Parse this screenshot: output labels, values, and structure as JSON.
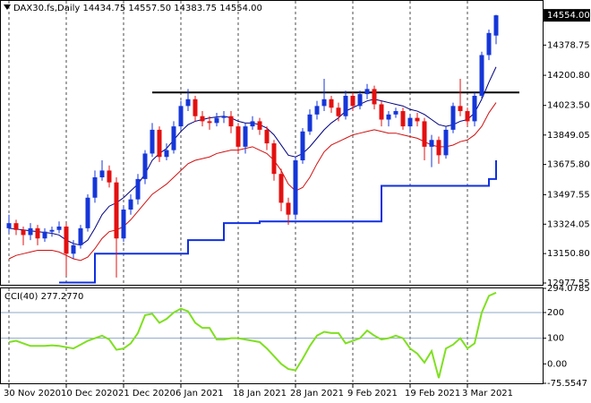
{
  "chart_data": [
    {
      "type": "candlestick",
      "title": "DAX30.fs,Daily  14434.75 14557.50 14383.75 14554.00",
      "categories": [
        "30 Nov 2020",
        null,
        null,
        null,
        null,
        null,
        null,
        null,
        "10 Dec 2020",
        null,
        null,
        null,
        null,
        null,
        null,
        null,
        "21 Dec 2020",
        null,
        null,
        null,
        null,
        null,
        null,
        null,
        "6 Jan 2021",
        null,
        null,
        null,
        null,
        null,
        null,
        null,
        "18 Jan 2021",
        null,
        null,
        null,
        null,
        null,
        null,
        null,
        "28 Jan 2021",
        null,
        null,
        null,
        null,
        null,
        null,
        null,
        "9 Feb 2021",
        null,
        null,
        null,
        null,
        null,
        null,
        null,
        "19 Feb 2021",
        null,
        null,
        null,
        null,
        null,
        null,
        null,
        "3 Mar 2021",
        null,
        null,
        null,
        null
      ],
      "open": [
        13300,
        13330,
        13290,
        13260,
        13300,
        13240,
        13280,
        13290,
        13310,
        13150,
        13200,
        13300,
        13480,
        13600,
        13640,
        13570,
        13240,
        13410,
        13470,
        13590,
        13740,
        13880,
        13720,
        13760,
        13900,
        14020,
        14060,
        13960,
        13930,
        13920,
        13950,
        13960,
        13900,
        13780,
        13900,
        13930,
        13880,
        13800,
        13620,
        13450,
        13380,
        13700,
        13870,
        13970,
        14020,
        14060,
        14010,
        13960,
        14080,
        14020,
        14090,
        14120,
        14030,
        13940,
        13970,
        13990,
        13900,
        13950,
        13930,
        13780,
        13820,
        13730,
        13880,
        14020,
        13990,
        13930,
        14080,
        14320,
        14434.75
      ],
      "high": [
        13380,
        13350,
        13310,
        13330,
        13320,
        13300,
        13310,
        13340,
        13330,
        13230,
        13320,
        13500,
        13640,
        13700,
        13670,
        13600,
        13430,
        13500,
        13620,
        13760,
        13920,
        13900,
        13800,
        13930,
        14050,
        14120,
        14080,
        13990,
        13960,
        13980,
        13990,
        13990,
        13920,
        13920,
        13960,
        13950,
        13900,
        13820,
        13650,
        13480,
        13720,
        13890,
        14000,
        14050,
        14180,
        14080,
        14040,
        14110,
        14100,
        14110,
        14150,
        14140,
        14050,
        13990,
        14010,
        14010,
        13970,
        13980,
        13950,
        13850,
        13840,
        13900,
        14040,
        14180,
        14010,
        14100,
        14340,
        14470,
        14557.5
      ],
      "low": [
        13270,
        13260,
        13200,
        13230,
        13200,
        13220,
        13250,
        13270,
        13020,
        13120,
        13180,
        13280,
        13450,
        13580,
        13540,
        13010,
        13220,
        13380,
        13440,
        13560,
        13720,
        13690,
        13700,
        13740,
        13880,
        13990,
        13930,
        13900,
        13880,
        13900,
        13920,
        13860,
        13740,
        13740,
        13880,
        13850,
        13760,
        13580,
        13400,
        13320,
        13350,
        13680,
        13850,
        13940,
        13990,
        13980,
        13930,
        13940,
        13990,
        14000,
        14060,
        14000,
        13900,
        13900,
        13950,
        13880,
        13860,
        13900,
        13700,
        13660,
        13680,
        13710,
        13860,
        13960,
        13900,
        13900,
        14060,
        14290,
        14383.75
      ],
      "close": [
        13330,
        13290,
        13260,
        13300,
        13240,
        13280,
        13290,
        13310,
        13150,
        13200,
        13300,
        13480,
        13600,
        13640,
        13570,
        13240,
        13410,
        13470,
        13590,
        13740,
        13880,
        13720,
        13760,
        13900,
        14020,
        14060,
        13960,
        13930,
        13920,
        13950,
        13960,
        13900,
        13780,
        13900,
        13930,
        13880,
        13800,
        13620,
        13450,
        13380,
        13700,
        13870,
        13970,
        14020,
        14060,
        14010,
        13960,
        14080,
        14020,
        14090,
        14120,
        14030,
        13940,
        13970,
        13990,
        13900,
        13950,
        13930,
        13780,
        13820,
        13730,
        13880,
        14020,
        13990,
        13930,
        14080,
        14320,
        14450,
        14554
      ],
      "up_color": "#1536d8",
      "down_color": "#e31010",
      "series": [
        {
          "color": "#000080",
          "width": 1,
          "values": [
            13300,
            13295,
            13290,
            13285,
            13280,
            13275,
            13270,
            13260,
            13230,
            13210,
            13200,
            13230,
            13300,
            13380,
            13430,
            13450,
            13480,
            13520,
            13560,
            13620,
            13700,
            13740,
            13770,
            13820,
            13870,
            13910,
            13930,
            13940,
            13950,
            13955,
            13960,
            13950,
            13930,
            13920,
            13920,
            13910,
            13890,
            13850,
            13790,
            13730,
            13720,
            13740,
            13780,
            13830,
            13880,
            13920,
            13950,
            13990,
            14010,
            14030,
            14050,
            14060,
            14050,
            14040,
            14030,
            14020,
            14000,
            13990,
            13970,
            13940,
            13910,
            13900,
            13910,
            13930,
            13940,
            13980,
            14060,
            14160,
            14250
          ]
        },
        {
          "color": "#d01010",
          "width": 1,
          "values": [
            13120,
            13140,
            13150,
            13160,
            13170,
            13170,
            13170,
            13160,
            13140,
            13120,
            13110,
            13130,
            13180,
            13240,
            13280,
            13290,
            13310,
            13350,
            13400,
            13450,
            13500,
            13530,
            13560,
            13600,
            13640,
            13680,
            13700,
            13710,
            13720,
            13740,
            13750,
            13760,
            13760,
            13770,
            13780,
            13760,
            13740,
            13700,
            13640,
            13560,
            13520,
            13540,
            13600,
            13680,
            13750,
            13790,
            13810,
            13830,
            13850,
            13860,
            13870,
            13880,
            13870,
            13860,
            13860,
            13850,
            13840,
            13830,
            13810,
            13790,
            13780,
            13780,
            13790,
            13810,
            13820,
            13850,
            13900,
            13980,
            14040
          ]
        },
        {
          "color": "#1030e0",
          "width": 2,
          "step": true,
          "values": [
            null,
            null,
            null,
            null,
            null,
            null,
            null,
            12980,
            12980,
            12980,
            12980,
            12980,
            13150,
            13150,
            13150,
            13150,
            13150,
            13150,
            13150,
            13150,
            13150,
            13150,
            13150,
            13150,
            13150,
            13230,
            13230,
            13230,
            13230,
            13230,
            13330,
            13330,
            13330,
            13330,
            13330,
            13340,
            13340,
            13340,
            13340,
            13340,
            13340,
            13340,
            13340,
            13340,
            13340,
            13340,
            13340,
            13340,
            13340,
            13340,
            13340,
            13340,
            13550,
            13550,
            13550,
            13550,
            13550,
            13550,
            13550,
            13550,
            13550,
            13550,
            13550,
            13550,
            13550,
            13550,
            13550,
            13590,
            13700
          ]
        }
      ],
      "level": {
        "value": 14100,
        "color": "#000000"
      },
      "price_tag": {
        "value": 14554,
        "label": "14554.00"
      },
      "ylim": [
        12967,
        14639
      ],
      "yticks": [
        {
          "value": 14378.75,
          "label": "14378.75"
        },
        {
          "value": 14200.8,
          "label": "14200.80"
        },
        {
          "value": 14023.5,
          "label": "14023.50"
        },
        13849.05,
        {
          "value": 13675.8,
          "label": "13675.80"
        },
        13497.55,
        13324.05,
        {
          "value": 13150.8,
          "label": "13150.80"
        },
        12977.55
      ],
      "grid": "vertical"
    },
    {
      "type": "line",
      "title": "CCI(40) 277.2770",
      "series": [
        {
          "color": "#7fe020",
          "width": 2,
          "values": [
            85,
            90,
            80,
            70,
            70,
            70,
            72,
            70,
            65,
            60,
            75,
            90,
            100,
            110,
            95,
            55,
            60,
            80,
            120,
            190,
            195,
            160,
            175,
            200,
            215,
            205,
            160,
            140,
            140,
            95,
            95,
            100,
            100,
            95,
            90,
            85,
            60,
            30,
            0,
            -20,
            -25,
            20,
            70,
            110,
            125,
            120,
            120,
            80,
            90,
            100,
            130,
            110,
            95,
            100,
            110,
            100,
            60,
            40,
            5,
            50,
            -55,
            60,
            75,
            100,
            60,
            80,
            200,
            265,
            277.277
          ]
        }
      ],
      "levels": [
        200,
        100
      ],
      "level_color": "#8fa8c8",
      "ylim": [
        -75.5547,
        294.0785
      ],
      "yticks": [
        294.0785,
        200,
        100,
        {
          "value": 0,
          "label": "0.00"
        },
        -75.5547
      ],
      "grid": "vertical"
    }
  ]
}
